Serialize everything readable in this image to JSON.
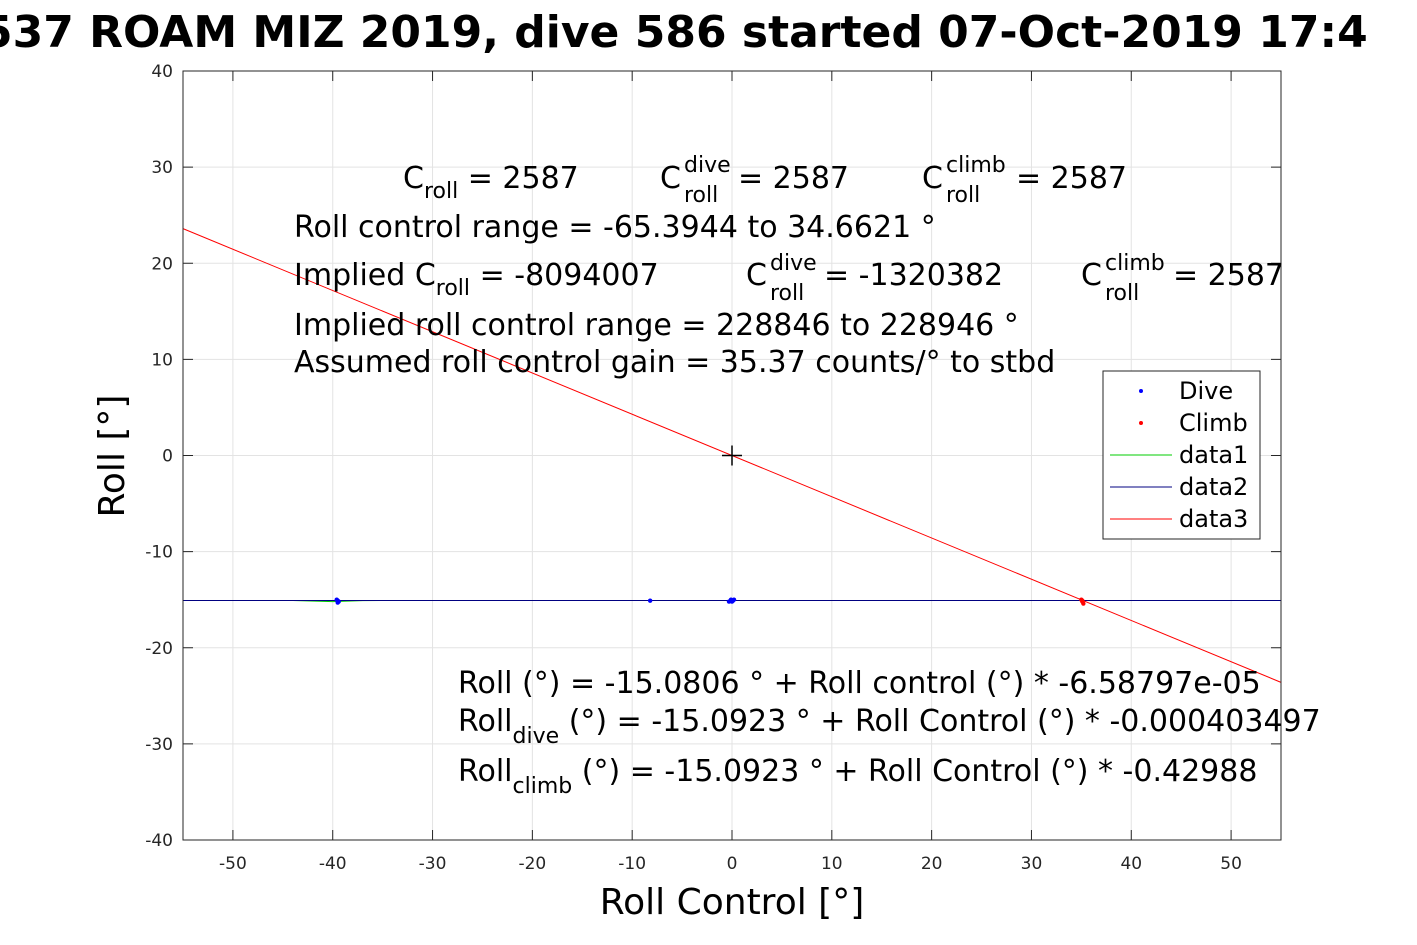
{
  "chart_data": {
    "type": "scatter",
    "title": "537 ROAM MIZ 2019, dive 586 started 07-Oct-2019 17:4",
    "xlabel": "Roll Control [°]",
    "ylabel": "Roll [°]",
    "xlim": [
      -55,
      55
    ],
    "ylim": [
      -40,
      40
    ],
    "x_ticks": [
      -50,
      -40,
      -30,
      -20,
      -10,
      0,
      10,
      20,
      30,
      40,
      50
    ],
    "y_ticks": [
      -40,
      -30,
      -20,
      -10,
      0,
      10,
      20,
      30,
      40
    ],
    "grid": true,
    "legend_position": "right",
    "series": [
      {
        "name": "Dive",
        "kind": "points",
        "color": "#0000ff",
        "x": [
          -39.6,
          -39.5,
          -39.4,
          -39.5,
          -8.2,
          -0.3,
          -0.1,
          0.1,
          0.2,
          0.0
        ],
        "y": [
          -15.0,
          -15.3,
          -15.2,
          -15.1,
          -15.1,
          -15.2,
          -15.0,
          -15.1,
          -15.0,
          -15.2
        ]
      },
      {
        "name": "Climb",
        "kind": "points",
        "color": "#ff0000",
        "x": [
          35.0,
          35.1,
          35.2,
          35.1
        ],
        "y": [
          -15.0,
          -15.2,
          -15.4,
          -15.1
        ]
      },
      {
        "name": "data1",
        "kind": "line",
        "color": "#00cc00",
        "x": [
          -55,
          -44,
          -40,
          -37,
          -35
        ],
        "y": [
          -15.08,
          -15.08,
          -15.2,
          -15.1,
          -15.08
        ]
      },
      {
        "name": "data2",
        "kind": "line",
        "color": "#000080",
        "x": [
          -55,
          55
        ],
        "y": [
          -15.08,
          -15.08
        ]
      },
      {
        "name": "data3",
        "kind": "line",
        "color": "#ff0000",
        "x": [
          -55,
          55
        ],
        "y": [
          23.6,
          -23.6
        ]
      }
    ],
    "marker": {
      "x": 0,
      "y": 0,
      "symbol": "+"
    }
  },
  "annotations": {
    "cal": {
      "c_label": "C",
      "roll_sub": "roll",
      "dive_sup": "dive",
      "climb_sup": "climb",
      "c_roll_value": " = 2587",
      "c_roll_dive_value": " = 2587",
      "c_roll_climb_value": " = 2587"
    },
    "range": "Roll control range = -65.3944 to 34.6621 °",
    "implied": {
      "prefix": "Implied C",
      "c_roll_value": " = -8094007",
      "c_roll_dive_value": " = -1320382",
      "c_roll_climb_value": " = 2587"
    },
    "implied_range": "Implied roll control range = 228846 to 228946 °",
    "gain": "Assumed roll control gain = 35.37 counts/° to stbd",
    "fit": {
      "all": "Roll (°) = -15.0806 ° + Roll control (°) * -6.58797e-05",
      "roll": "Roll",
      "dive_sub": "dive",
      "dive_rest": " (°) = -15.0923 ° + Roll Control (°) * -0.000403497",
      "climb_sub": "climb",
      "climb_rest": " (°) = -15.0923 ° + Roll Control (°) * -0.42988"
    }
  }
}
